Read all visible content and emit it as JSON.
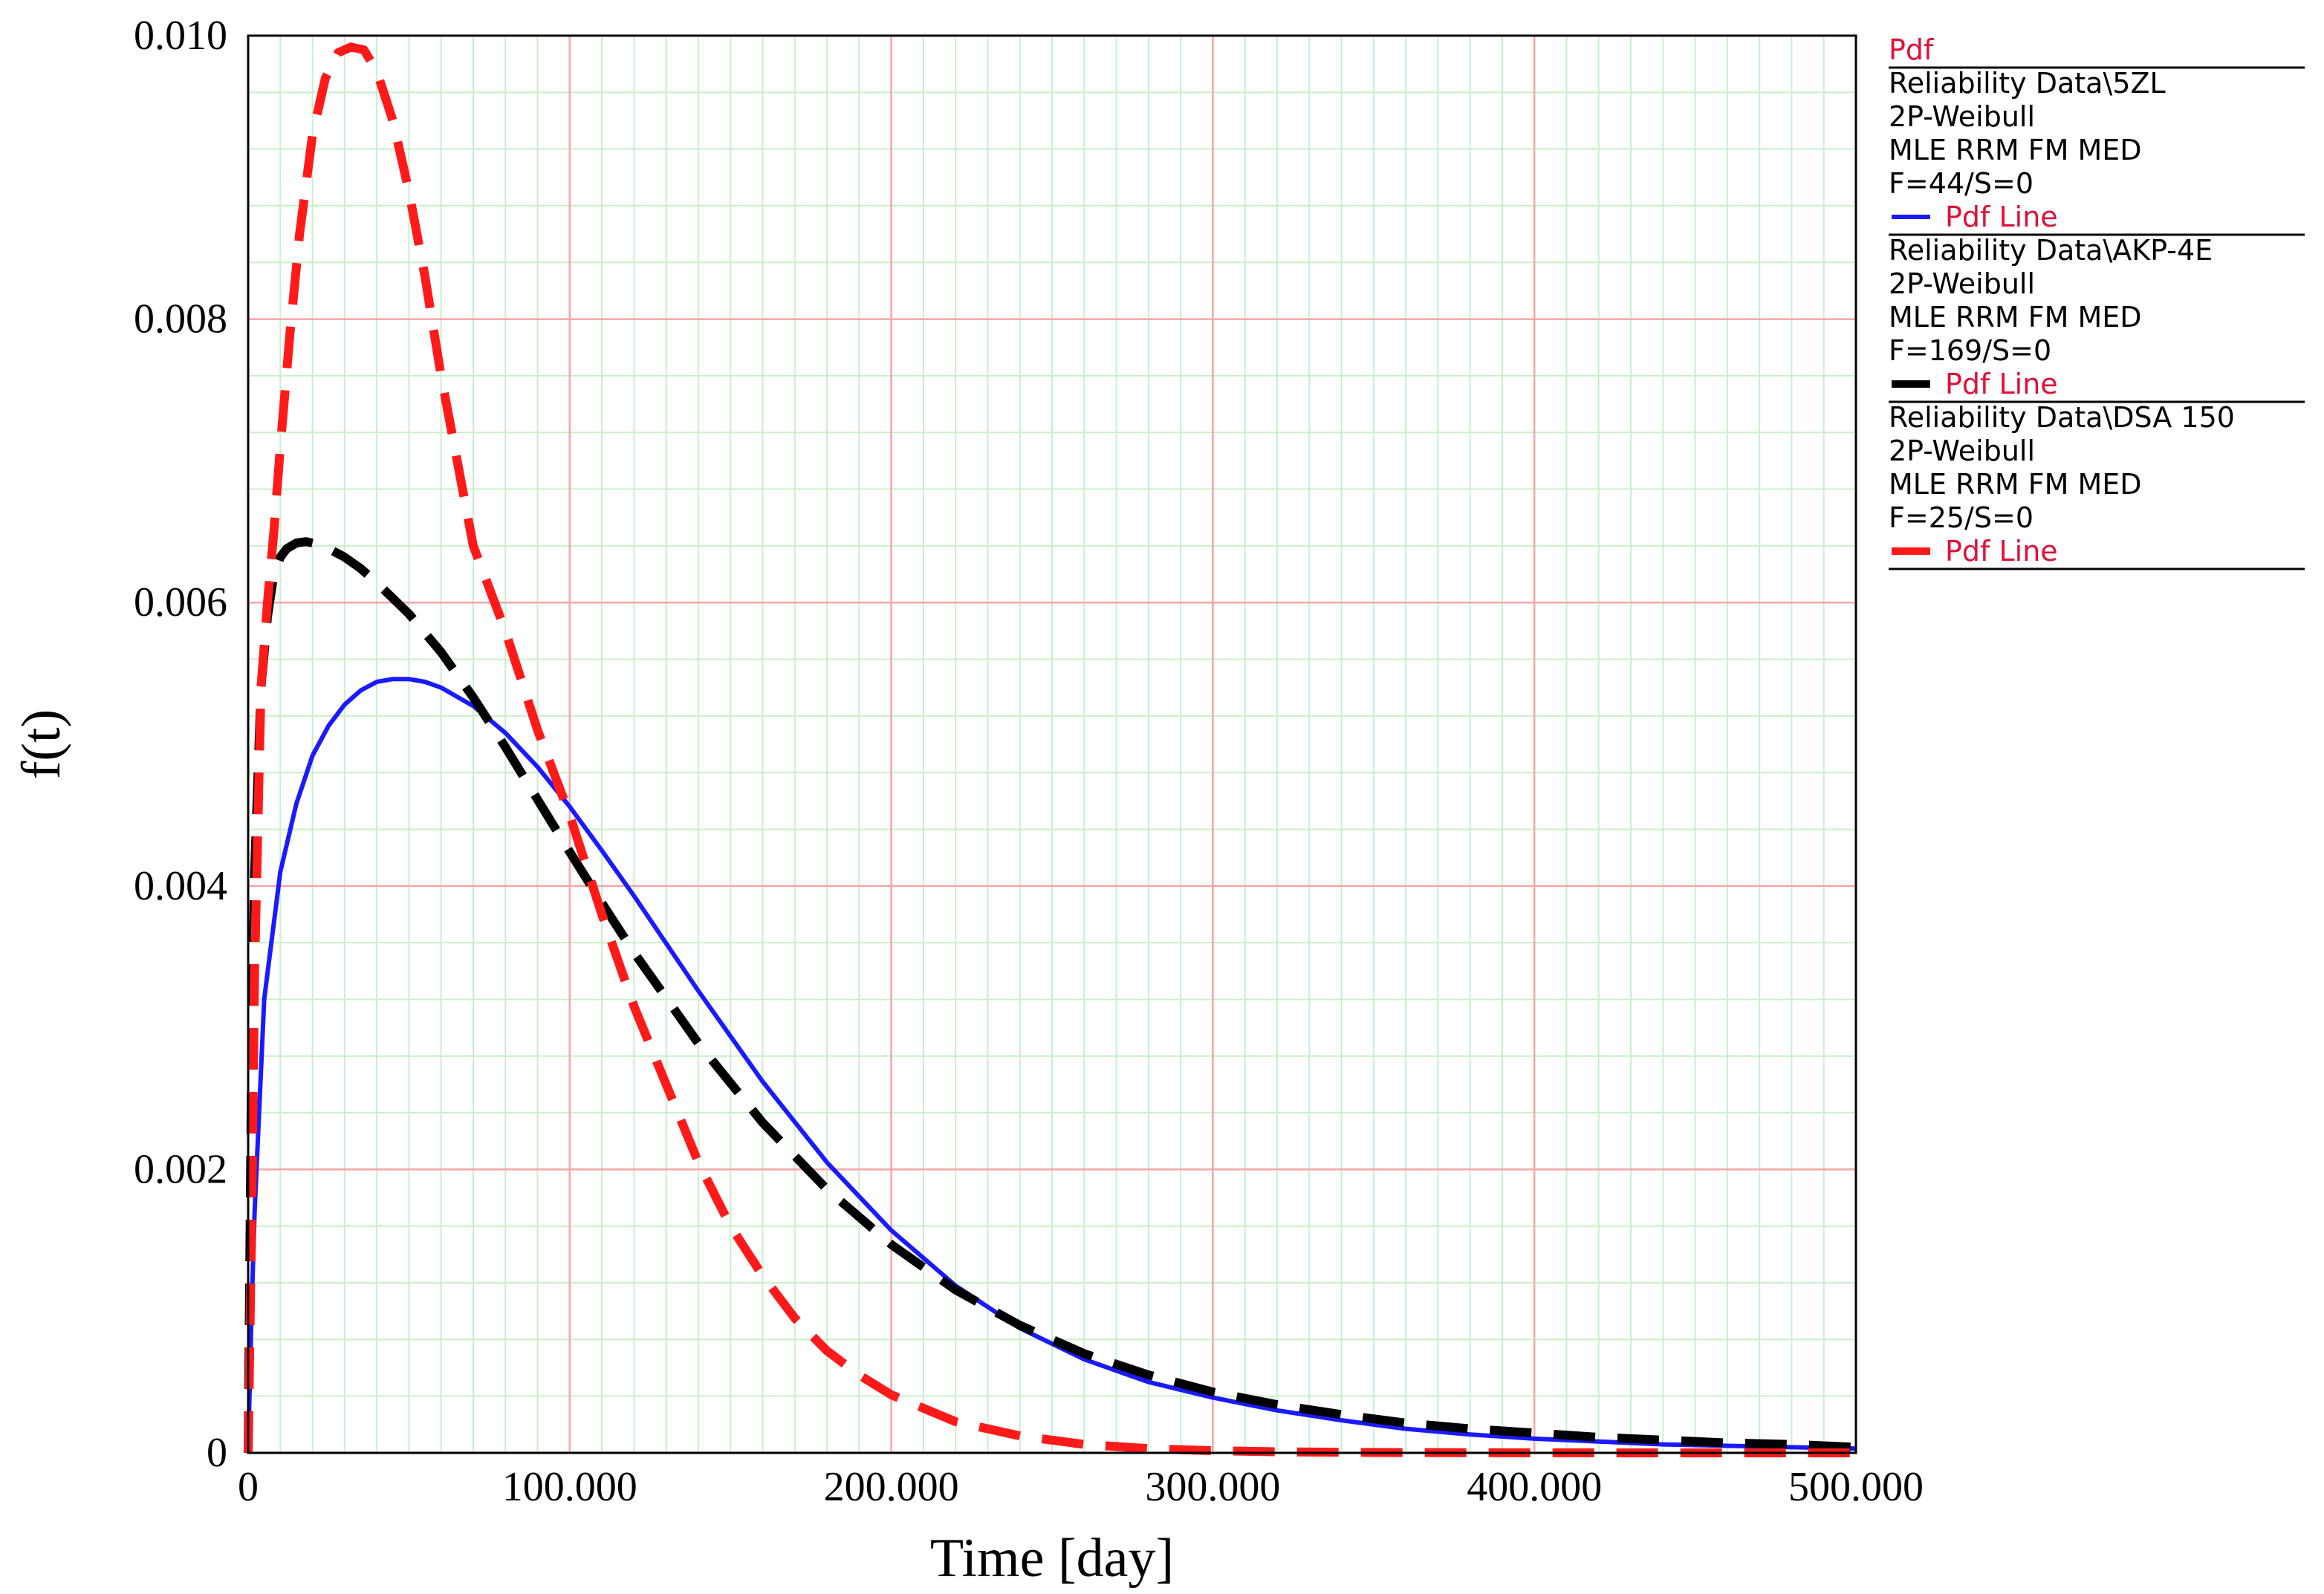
{
  "chart_data": {
    "type": "line",
    "xlabel": "Time [day]",
    "ylabel": "f(t)",
    "xlim": [
      0,
      500
    ],
    "ylim": [
      0,
      0.01
    ],
    "x_ticks": [
      0,
      100,
      200,
      300,
      400,
      500
    ],
    "x_tick_labels": [
      "0",
      "100.000",
      "200.000",
      "300.000",
      "400.000",
      "500.000"
    ],
    "y_ticks": [
      0,
      0.002,
      0.004,
      0.006,
      0.008,
      0.01
    ],
    "y_tick_labels": [
      "0",
      "0.002",
      "0.004",
      "0.006",
      "0.008",
      "0.010"
    ],
    "grid": true,
    "grid_major_color": "#f4a6a6",
    "grid_minor_color": "#c8f0c8",
    "legend": {
      "placement": "right",
      "title": "Pdf",
      "line_label": "Pdf Line",
      "entries": [
        {
          "lines": [
            "Reliability Data\\5ZL",
            "2P-Weibull",
            "MLE RRM FM MED",
            "F=44/S=0"
          ],
          "color": "#1a1aff",
          "style": "solid"
        },
        {
          "lines": [
            "Reliability Data\\AKP-4E",
            "2P-Weibull",
            "MLE RRM FM MED",
            "F=169/S=0"
          ],
          "color": "#000000",
          "style": "dashed"
        },
        {
          "lines": [
            "Reliability Data\\DSA 150",
            "2P-Weibull",
            "MLE RRM FM MED",
            "F=25/S=0"
          ],
          "color": "#ff1a1a",
          "style": "dashed"
        }
      ]
    },
    "series": [
      {
        "color": "#1a1aff",
        "style": "solid",
        "x": [
          0,
          1,
          2,
          5,
          10,
          15,
          20,
          25,
          30,
          35,
          40,
          45,
          50,
          55,
          60,
          70,
          80,
          90,
          100,
          110,
          120,
          140,
          160,
          180,
          200,
          220,
          240,
          260,
          280,
          300,
          320,
          340,
          360,
          380,
          400,
          420,
          440,
          460,
          480,
          500
        ],
        "y": [
          0,
          0.00095,
          0.0017,
          0.0032,
          0.0041,
          0.00458,
          0.00492,
          0.00513,
          0.00528,
          0.00538,
          0.00544,
          0.00546,
          0.00546,
          0.00544,
          0.0054,
          0.00527,
          0.00508,
          0.00484,
          0.00456,
          0.00425,
          0.00393,
          0.00326,
          0.00262,
          0.00205,
          0.00157,
          0.00118,
          0.00088,
          0.00066,
          0.0005,
          0.00039,
          0.0003,
          0.00023,
          0.00017,
          0.00013,
          0.0001,
          8e-05,
          6e-05,
          5e-05,
          4e-05,
          3e-05
        ]
      },
      {
        "color": "#000000",
        "style": "dashed",
        "x": [
          0,
          1,
          2,
          4,
          6,
          8,
          10,
          12,
          15,
          18,
          20,
          25,
          30,
          35,
          40,
          45,
          50,
          60,
          70,
          80,
          90,
          100,
          110,
          120,
          140,
          160,
          180,
          200,
          220,
          240,
          260,
          280,
          300,
          320,
          340,
          360,
          380,
          400,
          420,
          440,
          460,
          480,
          500
        ],
        "y": [
          0,
          0.0026,
          0.0041,
          0.0054,
          0.0059,
          0.0062,
          0.00632,
          0.00638,
          0.00642,
          0.00643,
          0.00642,
          0.00638,
          0.00632,
          0.00624,
          0.00614,
          0.00603,
          0.00592,
          0.00565,
          0.00533,
          0.00498,
          0.00461,
          0.00424,
          0.00388,
          0.00353,
          0.00289,
          0.00233,
          0.00186,
          0.00147,
          0.00115,
          0.0009,
          0.0007,
          0.00055,
          0.00043,
          0.00034,
          0.00027,
          0.00021,
          0.00017,
          0.00014,
          0.00011,
          9e-05,
          7e-05,
          6e-05,
          4e-05
        ]
      },
      {
        "color": "#ff1a1a",
        "style": "dashed",
        "x": [
          0,
          1,
          2,
          4,
          6,
          8,
          10,
          13,
          16,
          20,
          24,
          28,
          32,
          36,
          40,
          45,
          50,
          55,
          60,
          70,
          80,
          90,
          100,
          110,
          120,
          130,
          140,
          150,
          160,
          170,
          180,
          190,
          200,
          220,
          240,
          260,
          280,
          300,
          320,
          340,
          360,
          400,
          450,
          500
        ],
        "y": [
          0,
          0.0015,
          0.0034,
          0.0054,
          0.006,
          0.0065,
          0.0071,
          0.0079,
          0.0086,
          0.0093,
          0.0097,
          0.00988,
          0.00992,
          0.0099,
          0.00975,
          0.0094,
          0.0089,
          0.0083,
          0.0076,
          0.0064,
          0.0058,
          0.0051,
          0.0045,
          0.0038,
          0.00315,
          0.0026,
          0.00205,
          0.0016,
          0.00125,
          0.00095,
          0.00072,
          0.00055,
          0.00041,
          0.00022,
          0.00012,
          6e-05,
          3e-05,
          1.5e-05,
          8e-06,
          4e-06,
          2e-06,
          5e-07,
          0,
          0
        ]
      }
    ]
  }
}
